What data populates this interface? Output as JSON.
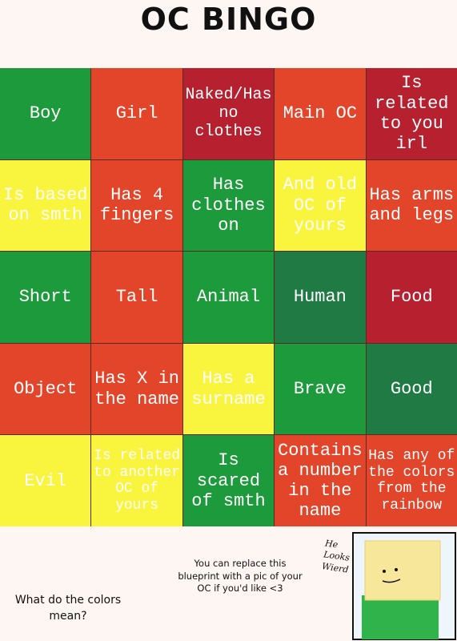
{
  "title": "OC BINGO",
  "grid": {
    "rows": [
      [
        {
          "text": "Boy",
          "color": "#1d9a3b"
        },
        {
          "text": "Girl",
          "color": "#e2452a"
        },
        {
          "text": "Naked/Has no clothes",
          "color": "#b6202f"
        },
        {
          "text": "Main OC",
          "color": "#e2452a"
        },
        {
          "text": "Is related to you irl",
          "color": "#b6202f"
        }
      ],
      [
        {
          "text": "Is based on smth",
          "color": "#f9f53f"
        },
        {
          "text": "Has 4 fingers",
          "color": "#e2452a"
        },
        {
          "text": "Has clothes on",
          "color": "#1d9a3b"
        },
        {
          "text": "And old OC of yours",
          "color": "#f9f53f"
        },
        {
          "text": "Has arms and legs",
          "color": "#e2452a"
        }
      ],
      [
        {
          "text": "Short",
          "color": "#1d9a3b"
        },
        {
          "text": "Tall",
          "color": "#e2452a"
        },
        {
          "text": "Animal",
          "color": "#1d9a3b"
        },
        {
          "text": "Human",
          "color": "#1f7a44"
        },
        {
          "text": "Food",
          "color": "#b6202f"
        }
      ],
      [
        {
          "text": "Object",
          "color": "#e2452a"
        },
        {
          "text": "Has X in the name",
          "color": "#e2452a"
        },
        {
          "text": "Has a surname",
          "color": "#f9f53f"
        },
        {
          "text": "Brave",
          "color": "#1d9a3b"
        },
        {
          "text": "Good",
          "color": "#1f7a44"
        }
      ],
      [
        {
          "text": "Evil",
          "color": "#f9f53f"
        },
        {
          "text": "Is related to another OC of yours",
          "color": "#f9f53f"
        },
        {
          "text": "Is scared of smth",
          "color": "#1d9a3b"
        },
        {
          "text": "Contains a number in the name",
          "color": "#e2452a"
        },
        {
          "text": "Has any of the colors from the rainbow",
          "color": "#e2452a"
        }
      ]
    ]
  },
  "note": "You can replace this blueprint with a pic of your OC if you'd like <3",
  "question": "What do the colors mean?",
  "drawing_caption": "He Looks Wierd"
}
